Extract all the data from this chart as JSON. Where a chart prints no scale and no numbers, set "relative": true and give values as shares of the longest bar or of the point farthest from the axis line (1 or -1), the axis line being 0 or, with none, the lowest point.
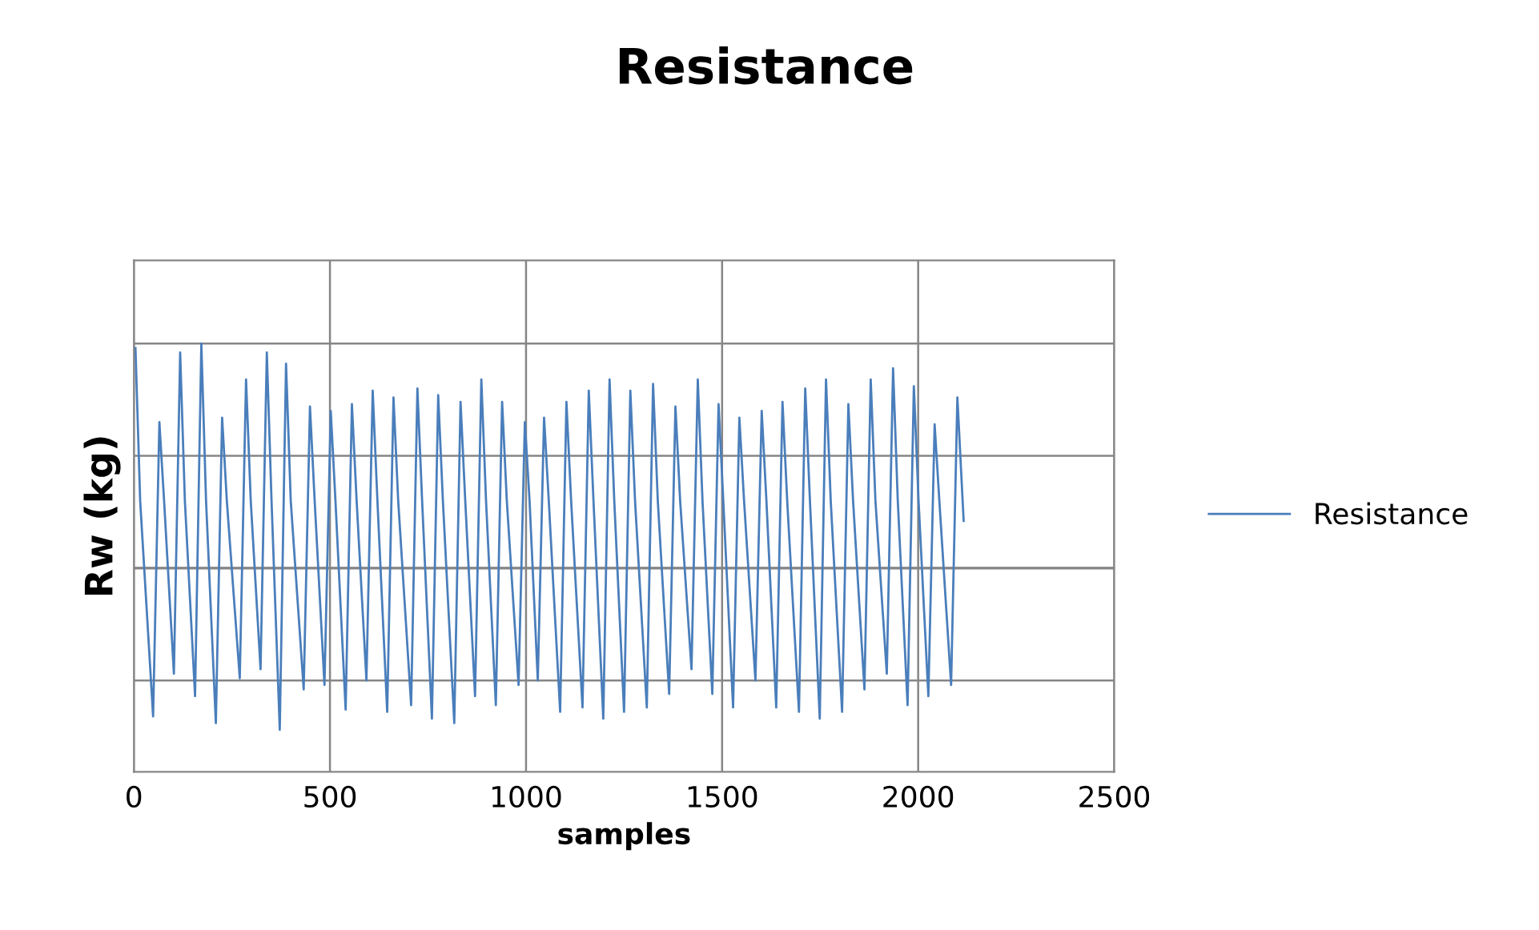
{
  "chart_data": {
    "type": "line",
    "title": "Resistance",
    "xlabel": "samples",
    "ylabel": "Rw (kg)",
    "relative": true,
    "xlim": [
      0,
      2500
    ],
    "xticks": [
      0,
      500,
      1000,
      1500,
      2000,
      2500
    ],
    "grid": true,
    "legend": "right",
    "marker": "none",
    "line_style": "solid",
    "series": [
      {
        "name": "Resistance",
        "color": "#4a7ebb",
        "x": [
          4,
          16,
          49,
          65,
          77,
          102,
          118,
          130,
          156,
          172,
          184,
          209,
          225,
          237,
          270,
          286,
          298,
          323,
          339,
          351,
          372,
          388,
          400,
          433,
          449,
          461,
          486,
          502,
          514,
          540,
          556,
          568,
          593,
          609,
          621,
          646,
          662,
          674,
          707,
          723,
          735,
          760,
          776,
          788,
          817,
          833,
          845,
          870,
          886,
          898,
          923,
          939,
          951,
          981,
          997,
          1009,
          1030,
          1046,
          1058,
          1087,
          1103,
          1115,
          1144,
          1160,
          1172,
          1197,
          1213,
          1225,
          1250,
          1266,
          1278,
          1308,
          1324,
          1336,
          1365,
          1381,
          1393,
          1422,
          1438,
          1450,
          1475,
          1491,
          1503,
          1528,
          1544,
          1556,
          1585,
          1601,
          1613,
          1638,
          1654,
          1666,
          1696,
          1712,
          1724,
          1749,
          1765,
          1777,
          1806,
          1822,
          1834,
          1863,
          1879,
          1891,
          1920,
          1936,
          1948,
          1973,
          1989,
          2001,
          2026,
          2042,
          2054,
          2084,
          2100,
          2116
        ],
        "values": [
          0.98,
          0.3,
          -0.66,
          0.65,
          0.3,
          -0.47,
          0.96,
          0.3,
          -0.57,
          1.0,
          0.3,
          -0.69,
          0.67,
          0.3,
          -0.49,
          0.84,
          0.3,
          -0.45,
          0.96,
          0.3,
          -0.72,
          0.91,
          0.3,
          -0.54,
          0.72,
          0.3,
          -0.52,
          0.7,
          0.3,
          -0.63,
          0.73,
          0.3,
          -0.5,
          0.79,
          0.3,
          -0.64,
          0.76,
          0.3,
          -0.61,
          0.8,
          0.3,
          -0.67,
          0.77,
          0.3,
          -0.69,
          0.74,
          0.3,
          -0.57,
          0.84,
          0.3,
          -0.61,
          0.74,
          0.3,
          -0.52,
          0.65,
          0.3,
          -0.5,
          0.67,
          0.3,
          -0.64,
          0.74,
          0.3,
          -0.62,
          0.79,
          0.3,
          -0.67,
          0.84,
          0.3,
          -0.64,
          0.79,
          0.3,
          -0.62,
          0.82,
          0.3,
          -0.56,
          0.72,
          0.3,
          -0.45,
          0.84,
          0.3,
          -0.56,
          0.73,
          0.3,
          -0.62,
          0.67,
          0.3,
          -0.5,
          0.7,
          0.3,
          -0.62,
          0.74,
          0.3,
          -0.64,
          0.8,
          0.3,
          -0.67,
          0.84,
          0.3,
          -0.64,
          0.73,
          0.3,
          -0.54,
          0.84,
          0.3,
          -0.47,
          0.89,
          0.3,
          -0.61,
          0.81,
          0.3,
          -0.57,
          0.64,
          0.3,
          -0.52,
          0.76,
          0.21
        ]
      }
    ]
  }
}
